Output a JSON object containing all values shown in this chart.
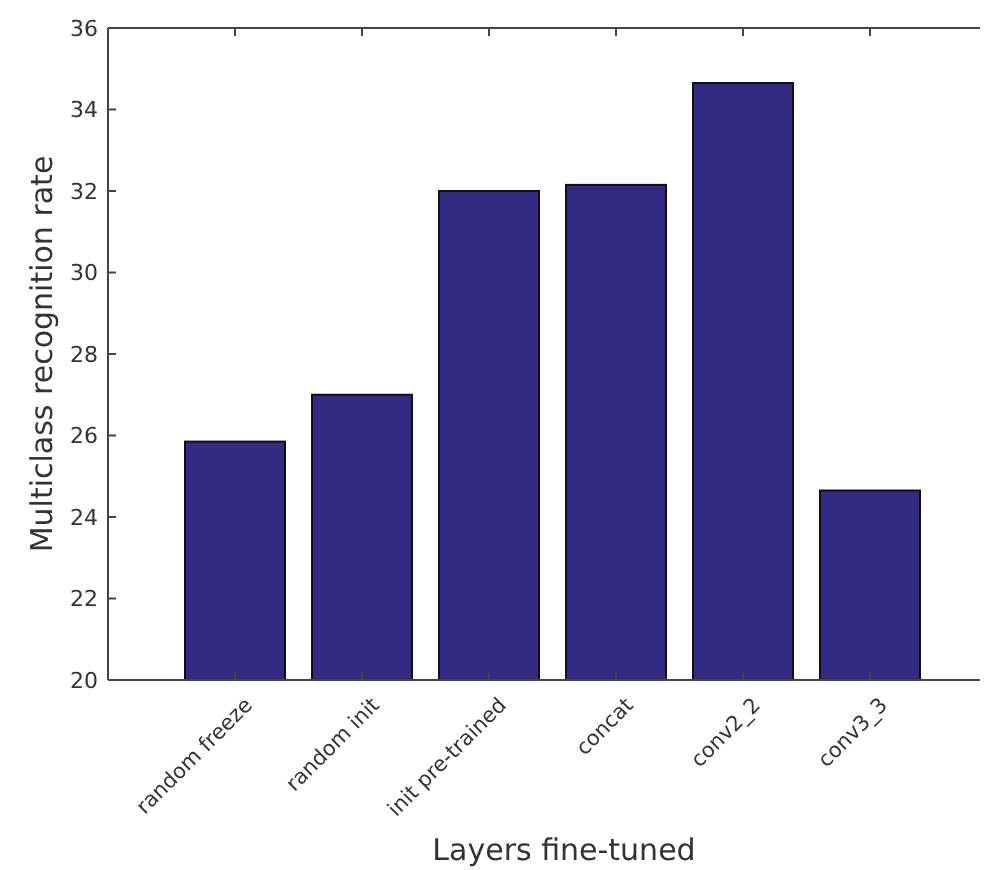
{
  "chart_data": {
    "type": "bar",
    "xlabel": "Layers fine-tuned",
    "ylabel": "Multiclass recognition rate",
    "categories": [
      "random freeze",
      "random init",
      "init pre-trained",
      "concat",
      "conv2_2",
      "conv3_3"
    ],
    "values": [
      25.85,
      27.0,
      32.0,
      32.15,
      34.65,
      24.65
    ],
    "color": "#342a84",
    "ylim": [
      20,
      36
    ],
    "yticks": [
      20,
      22,
      24,
      26,
      28,
      30,
      32,
      34,
      36
    ],
    "grid": false
  }
}
